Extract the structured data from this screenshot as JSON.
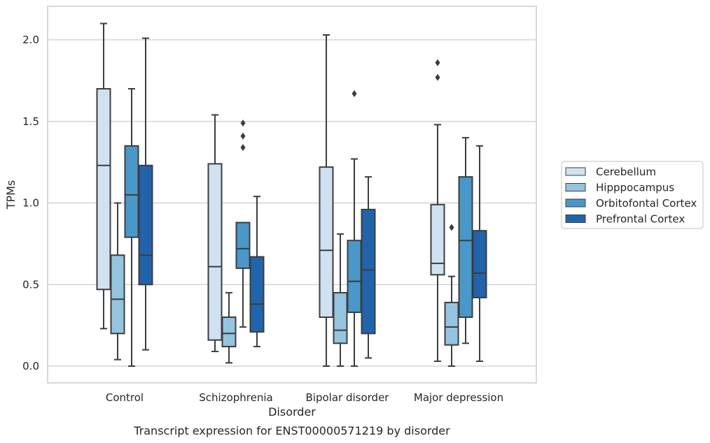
{
  "chart_data": {
    "type": "box",
    "categories": [
      "Control",
      "Schizophrenia",
      "Bipolar disorder",
      "Major depression"
    ],
    "xlabel": "Disorder",
    "ylabel": "TPMs",
    "caption": "Transcript expression for ENST00000571219 by disorder",
    "ylim": [
      -0.1,
      2.2
    ],
    "yticks": [
      0.0,
      0.5,
      1.0,
      1.5,
      2.0
    ],
    "ytick_labels": [
      "0.0",
      "0.5",
      "1.0",
      "1.5",
      "2.0"
    ],
    "grid": "horizontal",
    "legend_position": "right",
    "series": [
      {
        "name": "Cerebellum",
        "color": "#d0e1f2",
        "boxes": [
          {
            "whislo": 0.23,
            "q1": 0.47,
            "med": 1.23,
            "q3": 1.7,
            "whishi": 2.1,
            "fliers": []
          },
          {
            "whislo": 0.09,
            "q1": 0.16,
            "med": 0.61,
            "q3": 1.24,
            "whishi": 1.54,
            "fliers": []
          },
          {
            "whislo": 0.0,
            "q1": 0.3,
            "med": 0.71,
            "q3": 1.22,
            "whishi": 2.03,
            "fliers": []
          },
          {
            "whislo": 0.03,
            "q1": 0.56,
            "med": 0.63,
            "q3": 0.99,
            "whishi": 1.48,
            "fliers": [
              1.77,
              1.86
            ]
          }
        ]
      },
      {
        "name": "Hipppocampus",
        "color": "#94c4df",
        "boxes": [
          {
            "whislo": 0.04,
            "q1": 0.2,
            "med": 0.41,
            "q3": 0.68,
            "whishi": 1.0,
            "fliers": []
          },
          {
            "whislo": 0.02,
            "q1": 0.12,
            "med": 0.2,
            "q3": 0.3,
            "whishi": 0.45,
            "fliers": []
          },
          {
            "whislo": 0.0,
            "q1": 0.14,
            "med": 0.22,
            "q3": 0.45,
            "whishi": 0.81,
            "fliers": []
          },
          {
            "whislo": 0.0,
            "q1": 0.13,
            "med": 0.24,
            "q3": 0.39,
            "whishi": 0.55,
            "fliers": [
              0.85
            ]
          }
        ]
      },
      {
        "name": "Orbitofontal Cortex",
        "color": "#4a98c9",
        "boxes": [
          {
            "whislo": 0.0,
            "q1": 0.79,
            "med": 1.05,
            "q3": 1.35,
            "whishi": 1.7,
            "fliers": []
          },
          {
            "whislo": 0.24,
            "q1": 0.6,
            "med": 0.72,
            "q3": 0.88,
            "whishi": 0.88,
            "fliers": [
              1.34,
              1.41,
              1.49
            ]
          },
          {
            "whislo": 0.0,
            "q1": 0.33,
            "med": 0.52,
            "q3": 0.77,
            "whishi": 1.27,
            "fliers": [
              1.67
            ]
          },
          {
            "whislo": 0.14,
            "q1": 0.3,
            "med": 0.77,
            "q3": 1.16,
            "whishi": 1.4,
            "fliers": []
          }
        ]
      },
      {
        "name": "Prefrontal Cortex",
        "color": "#2164ab",
        "boxes": [
          {
            "whislo": 0.1,
            "q1": 0.5,
            "med": 0.68,
            "q3": 1.23,
            "whishi": 2.01,
            "fliers": []
          },
          {
            "whislo": 0.12,
            "q1": 0.21,
            "med": 0.38,
            "q3": 0.67,
            "whishi": 1.04,
            "fliers": []
          },
          {
            "whislo": 0.05,
            "q1": 0.2,
            "med": 0.59,
            "q3": 0.96,
            "whishi": 1.16,
            "fliers": []
          },
          {
            "whislo": 0.03,
            "q1": 0.42,
            "med": 0.57,
            "q3": 0.83,
            "whishi": 1.35,
            "fliers": []
          }
        ]
      }
    ]
  }
}
